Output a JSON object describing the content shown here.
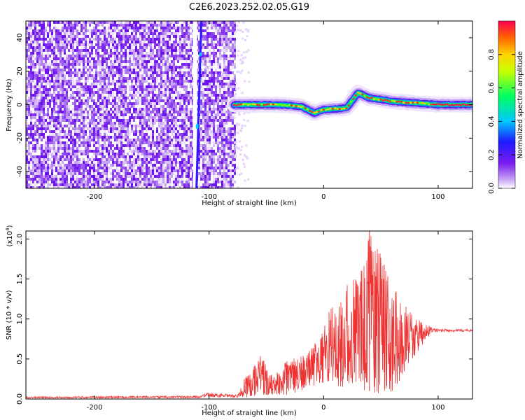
{
  "title": "C2E6.2023.252.02.05.G19",
  "chart_data": [
    {
      "type": "heatmap",
      "xlabel": "Height of straight line (km)",
      "ylabel": "Frequency (Hz)",
      "xlim": [
        -260,
        130
      ],
      "ylim": [
        -50,
        50
      ],
      "x_ticks": [
        -200,
        -100,
        0,
        100
      ],
      "y_ticks": [
        40,
        20,
        0,
        -20,
        -40
      ],
      "colorbar": {
        "label": "Normalized spectral amplitude",
        "range": [
          0.0,
          1.0
        ],
        "ticks": [
          "0.0",
          "0.2",
          "0.4",
          "0.6",
          "0.8"
        ],
        "colormap": "rainbow (white/violet low → red high)"
      },
      "features": {
        "noise_region_x": [
          -260,
          -78
        ],
        "vertical_line_x": -108,
        "tone_track": [
          {
            "x": -78,
            "y": 0
          },
          {
            "x": -40,
            "y": 0
          },
          {
            "x": -20,
            "y": -1
          },
          {
            "x": -8,
            "y": -5
          },
          {
            "x": 0,
            "y": -3
          },
          {
            "x": 20,
            "y": -2
          },
          {
            "x": 30,
            "y": 7
          },
          {
            "x": 40,
            "y": 4
          },
          {
            "x": 60,
            "y": 2
          },
          {
            "x": 100,
            "y": 0
          },
          {
            "x": 130,
            "y": 0
          }
        ]
      }
    },
    {
      "type": "line",
      "xlabel": "Height of straight line (km)",
      "ylabel": "SNR (10 * v/v)",
      "y_scale_label": "(x10",
      "y_scale_exp": "4",
      "y_scale_suffix": ")",
      "xlim": [
        -260,
        130
      ],
      "ylim": [
        0,
        2.1
      ],
      "x_ticks": [
        -200,
        -100,
        0,
        100
      ],
      "y_ticks": [
        "0.0",
        "0.5",
        "1.0",
        "1.5",
        "2.0"
      ],
      "series": [
        {
          "color": "#ee3333",
          "envelope": [
            {
              "x": -260,
              "lo": 0.0,
              "hi": 0.03
            },
            {
              "x": -110,
              "lo": 0.0,
              "hi": 0.04
            },
            {
              "x": -100,
              "lo": 0.0,
              "hi": 0.08
            },
            {
              "x": -75,
              "lo": 0.0,
              "hi": 0.05
            },
            {
              "x": -68,
              "lo": 0.02,
              "hi": 0.3
            },
            {
              "x": -55,
              "lo": 0.05,
              "hi": 0.55
            },
            {
              "x": -45,
              "lo": 0.05,
              "hi": 0.3
            },
            {
              "x": -30,
              "lo": 0.05,
              "hi": 0.5
            },
            {
              "x": -15,
              "lo": 0.1,
              "hi": 0.55
            },
            {
              "x": -5,
              "lo": 0.2,
              "hi": 0.8
            },
            {
              "x": 5,
              "lo": 0.2,
              "hi": 1.1
            },
            {
              "x": 15,
              "lo": 0.15,
              "hi": 1.3
            },
            {
              "x": 25,
              "lo": 0.15,
              "hi": 1.55
            },
            {
              "x": 35,
              "lo": 0.1,
              "hi": 1.65
            },
            {
              "x": 40,
              "lo": 0.1,
              "hi": 2.1
            },
            {
              "x": 50,
              "lo": 0.05,
              "hi": 1.8
            },
            {
              "x": 60,
              "lo": 0.1,
              "hi": 1.45
            },
            {
              "x": 70,
              "lo": 0.3,
              "hi": 1.2
            },
            {
              "x": 80,
              "lo": 0.55,
              "hi": 1.0
            },
            {
              "x": 90,
              "lo": 0.75,
              "hi": 0.95
            },
            {
              "x": 95,
              "lo": 0.82,
              "hi": 0.88
            },
            {
              "x": 130,
              "lo": 0.83,
              "hi": 0.87
            }
          ]
        }
      ]
    }
  ]
}
